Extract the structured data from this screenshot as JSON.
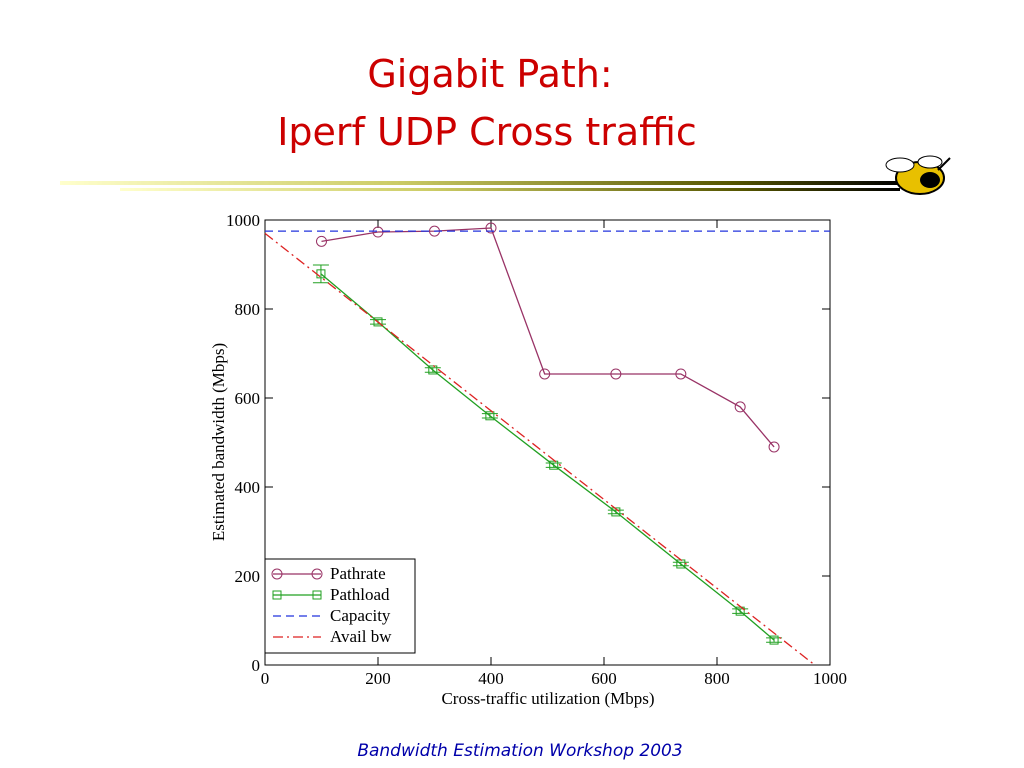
{
  "slide": {
    "title": [
      "Gigabit Path:",
      "Iperf UDP Cross traffic"
    ],
    "footer": "Bandwidth Estimation Workshop 2003"
  },
  "chart_data": {
    "type": "line",
    "xlabel": "Cross-traffic utilization (Mbps)",
    "ylabel": "Estimated bandwidth (Mbps)",
    "xlim": [
      0,
      1000
    ],
    "ylim": [
      0,
      1000
    ],
    "xticks": [
      0,
      200,
      400,
      600,
      800,
      1000
    ],
    "yticks": [
      0,
      200,
      400,
      600,
      800,
      1000
    ],
    "legend": "lower left",
    "series": [
      {
        "name": "Pathrate",
        "color": "#993366",
        "marker": "circle",
        "dash": "solid",
        "x": [
          100,
          200,
          300,
          400,
          495,
          621,
          736,
          841,
          901
        ],
        "values": [
          952,
          973,
          975,
          982,
          654,
          654,
          654,
          580,
          490
        ]
      },
      {
        "name": "Pathload",
        "color": "#22a022",
        "marker": "square",
        "dash": "solid",
        "x": [
          99,
          200,
          297,
          398,
          511,
          621,
          736,
          841,
          901
        ],
        "values": [
          879,
          771,
          663,
          560,
          449,
          344,
          227,
          121,
          56
        ],
        "errors": [
          20,
          5,
          5,
          5,
          5,
          4,
          4,
          5,
          5
        ]
      },
      {
        "name": "Capacity",
        "color": "#2233dd",
        "marker": "none",
        "dash": "dashed",
        "x": [
          0,
          1000
        ],
        "values": [
          975,
          975
        ]
      },
      {
        "name": "Avail bw",
        "color": "#dd2222",
        "marker": "none",
        "dash": "dashdot",
        "x": [
          0,
          973
        ],
        "values": [
          970,
          0
        ]
      }
    ]
  }
}
